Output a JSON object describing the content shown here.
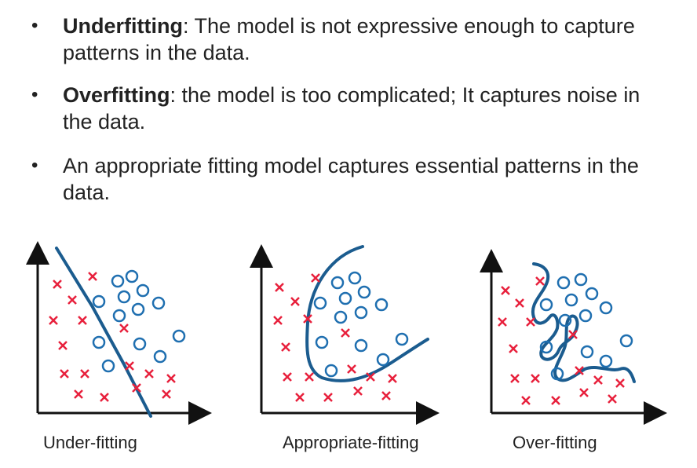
{
  "bullets": [
    {
      "term": "Underfitting",
      "rest": ": The model is not expressive enough to capture",
      "line2": "patterns in the data."
    },
    {
      "term": "Overfitting",
      "rest": ": the model is too complicated; It captures noise in",
      "line2": "the data."
    },
    {
      "term": "",
      "rest": "An appropriate fitting model captures essential patterns in the",
      "line2": "data."
    }
  ],
  "panels": [
    {
      "caption": "Under-fitting"
    },
    {
      "caption": "Appropriate-fitting"
    },
    {
      "caption": "Over-fitting"
    }
  ],
  "colors": {
    "x_marker": "#e8203c",
    "o_marker": "#1f6fb0",
    "boundary": "#1b5c8f",
    "axis": "#111111"
  }
}
